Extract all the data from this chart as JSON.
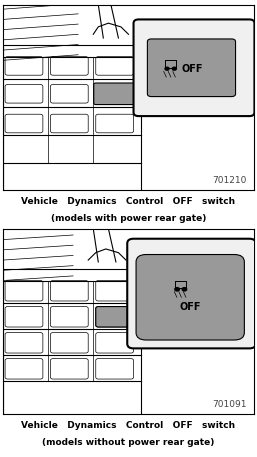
{
  "fig_width": 2.57,
  "fig_height": 4.57,
  "dpi": 100,
  "bg_color": "#ffffff",
  "panel1": {
    "caption_line1": "Vehicle   Dynamics   Control   OFF   switch",
    "caption_line2": "(models with power rear gate)",
    "fig_number": "701210"
  },
  "panel2": {
    "caption_line1": "Vehicle   Dynamics   Control   OFF   switch",
    "caption_line2": "(models without power rear gate)",
    "fig_number": "701091"
  },
  "caption_color": "#000000",
  "caption_fontsize": 6.5,
  "border_color": "#000000",
  "fig_num_fontsize": 6.5,
  "fig_num_color": "#444444",
  "line_color": "#000000",
  "lw_main": 0.8,
  "lw_thin": 0.5,
  "callout_bg": "#e0e0e0",
  "callout_border": "#000000",
  "btn_gray": "#999999",
  "btn_dark": "#777777",
  "panel_bg": "#ffffff"
}
